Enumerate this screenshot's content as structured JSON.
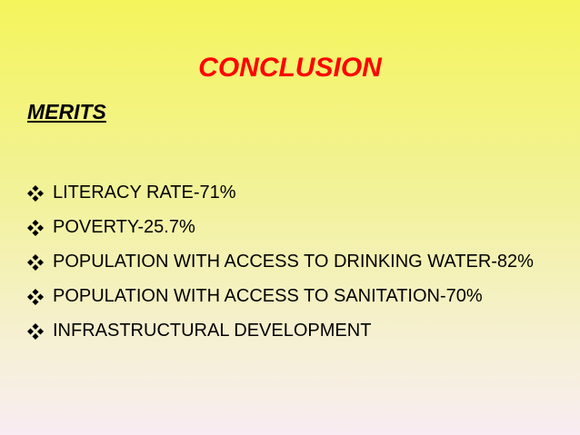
{
  "slide": {
    "title": "CONCLUSION",
    "subtitle": "MERITS",
    "bullets": [
      "LITERACY RATE-71%",
      "POVERTY-25.7%",
      "POPULATION WITH ACCESS TO DRINKING WATER-82%",
      "POPULATION WITH ACCESS TO SANITATION-70%",
      "INFRASTRUCTURAL DEVELOPMENT"
    ]
  }
}
